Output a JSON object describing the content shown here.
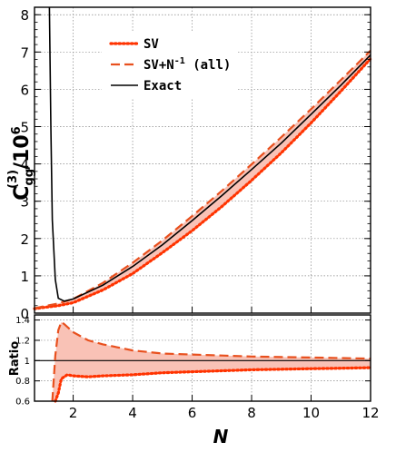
{
  "chart_data": [
    {
      "type": "line",
      "panel": "main",
      "ylabel": "C_gg^(3)/10^6",
      "ylabel_main": "C",
      "ylabel_sub": "gg",
      "ylabel_sup": "(3)",
      "ylabel_rest": "/10",
      "ylabel_exp": "6",
      "xlim": [
        0.7,
        12
      ],
      "ylim": [
        0,
        8.2
      ],
      "xticks": [
        2,
        4,
        6,
        8,
        10,
        12
      ],
      "yticks": [
        0,
        1,
        2,
        3,
        4,
        5,
        6,
        7,
        8
      ],
      "grid": true,
      "legend_position": "top-left",
      "legend": [
        {
          "label": "SV",
          "style": "dotted",
          "color": "#ff3300"
        },
        {
          "label": "SV+N",
          "label_sup": "-1",
          "label_suffix": " (all)",
          "style": "dashed",
          "color": "#e8501e"
        },
        {
          "label": "Exact",
          "style": "solid",
          "color": "#000000"
        }
      ],
      "band": {
        "color": "#f9c2b6",
        "between": [
          "SV",
          "SV+N^-1 (all)"
        ]
      },
      "series": [
        {
          "name": "SV",
          "x": [
            0.7,
            1,
            1.5,
            2,
            3,
            4,
            5,
            6,
            7,
            8,
            9,
            10,
            11,
            12
          ],
          "y": [
            0.12,
            0.15,
            0.2,
            0.28,
            0.62,
            1.06,
            1.62,
            2.21,
            2.86,
            3.56,
            4.3,
            5.1,
            5.95,
            6.82
          ]
        },
        {
          "name": "SV+N^-1 (all)",
          "x": [
            0.7,
            1,
            1.5,
            2,
            3,
            4,
            5,
            6,
            7,
            8,
            9,
            10,
            11,
            12
          ],
          "y": [
            0.13,
            0.18,
            0.26,
            0.38,
            0.81,
            1.35,
            1.95,
            2.6,
            3.28,
            3.99,
            4.72,
            5.47,
            6.25,
            7.04
          ]
        },
        {
          "name": "Exact",
          "x": [
            1.2,
            1.25,
            1.3,
            1.4,
            1.5,
            1.7,
            2,
            3,
            4,
            5,
            6,
            7,
            8,
            9,
            10,
            11,
            12
          ],
          "y": [
            8.2,
            5.0,
            2.5,
            0.9,
            0.4,
            0.32,
            0.38,
            0.75,
            1.25,
            1.83,
            2.48,
            3.15,
            3.85,
            4.56,
            5.33,
            6.11,
            6.92
          ]
        }
      ]
    },
    {
      "type": "line",
      "panel": "ratio",
      "ylabel": "Ratio",
      "xlabel": "N",
      "xlim": [
        0.7,
        12
      ],
      "ylim": [
        0.6,
        1.45
      ],
      "xticks": [
        2,
        4,
        6,
        8,
        10,
        12
      ],
      "yticks": [
        0.6,
        0.8,
        1,
        1.2,
        1.4
      ],
      "grid": true,
      "reference_line": 1,
      "series": [
        {
          "name": "SV",
          "x": [
            1.4,
            1.5,
            1.6,
            1.8,
            2,
            2.5,
            3,
            4,
            5,
            6,
            7,
            8,
            9,
            10,
            11,
            12
          ],
          "y": [
            0.6,
            0.68,
            0.82,
            0.86,
            0.85,
            0.84,
            0.85,
            0.86,
            0.88,
            0.89,
            0.9,
            0.91,
            0.915,
            0.92,
            0.925,
            0.93
          ]
        },
        {
          "name": "SV+N^-1 (all)",
          "x": [
            1.3,
            1.4,
            1.5,
            1.6,
            1.7,
            2,
            2.5,
            3,
            4,
            5,
            6,
            7,
            8,
            9,
            10,
            11,
            12
          ],
          "y": [
            0.6,
            1.05,
            1.3,
            1.38,
            1.36,
            1.28,
            1.2,
            1.16,
            1.1,
            1.07,
            1.06,
            1.05,
            1.04,
            1.035,
            1.03,
            1.025,
            1.02
          ]
        }
      ]
    }
  ]
}
